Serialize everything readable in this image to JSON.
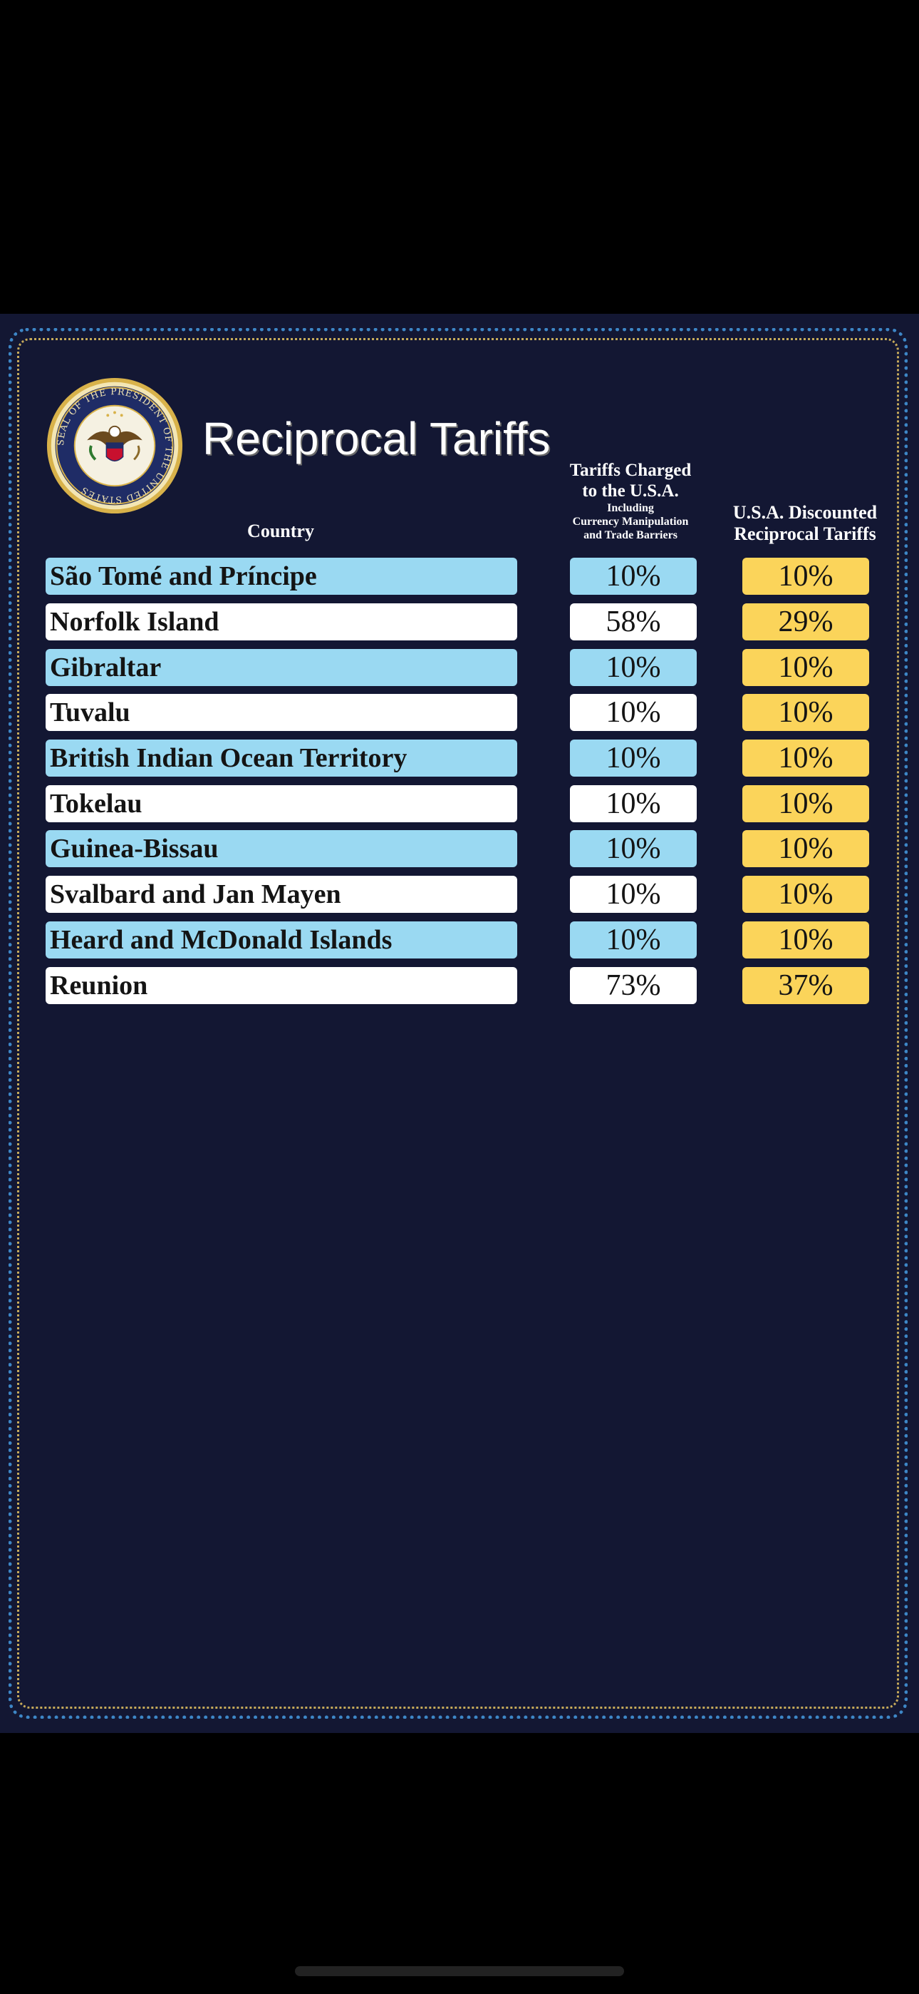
{
  "header": {
    "title": "Reciprocal Tariffs",
    "seal_text": "SEAL OF THE PRESIDENT OF THE UNITED STATES"
  },
  "columns": {
    "country": "Country",
    "charged_line1": "Tariffs Charged",
    "charged_line2": "to the U.S.A.",
    "charged_sub1": "Including",
    "charged_sub2": "Currency Manipulation",
    "charged_sub3": "and Trade Barriers",
    "discount_line1": "U.S.A. Discounted",
    "discount_line2": "Reciprocal Tariffs"
  },
  "rows": [
    {
      "country": "São Tomé and Príncipe",
      "charged": "10%",
      "discounted": "10%"
    },
    {
      "country": "Norfolk Island",
      "charged": "58%",
      "discounted": "29%"
    },
    {
      "country": "Gibraltar",
      "charged": "10%",
      "discounted": "10%"
    },
    {
      "country": "Tuvalu",
      "charged": "10%",
      "discounted": "10%"
    },
    {
      "country": "British Indian Ocean Territory",
      "charged": "10%",
      "discounted": "10%"
    },
    {
      "country": "Tokelau",
      "charged": "10%",
      "discounted": "10%"
    },
    {
      "country": "Guinea-Bissau",
      "charged": "10%",
      "discounted": "10%"
    },
    {
      "country": "Svalbard and Jan Mayen",
      "charged": "10%",
      "discounted": "10%"
    },
    {
      "country": "Heard and McDonald Islands",
      "charged": "10%",
      "discounted": "10%"
    },
    {
      "country": "Reunion",
      "charged": "73%",
      "discounted": "37%"
    }
  ],
  "colors": {
    "background": "#131733",
    "row_blue": "#9ad9f2",
    "row_white": "#ffffff",
    "discount_yellow": "#fbd45a",
    "border_blue": "#3d86c6",
    "border_gold": "#c6aa5a"
  }
}
